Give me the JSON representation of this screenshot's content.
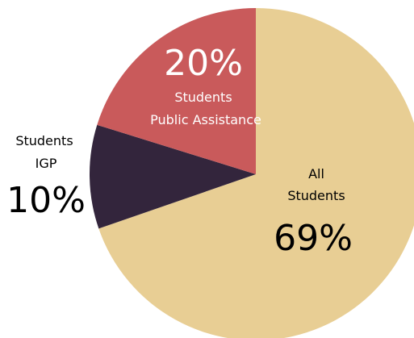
{
  "chart_data": {
    "type": "pie",
    "title": "",
    "slices": [
      {
        "label_lines": [
          "All",
          "Students"
        ],
        "value": 69,
        "value_label": "69%",
        "color": "#e8ce94",
        "text_color": "#000000"
      },
      {
        "label_lines": [
          "Students",
          "IGP"
        ],
        "value": 10,
        "value_label": "10%",
        "color": "#33253c",
        "text_color": "#000000"
      },
      {
        "label_lines": [
          "Students",
          "Public Assistance"
        ],
        "value": 20,
        "value_label": "20%",
        "color": "#c95a5b",
        "text_color": "#ffffff"
      }
    ],
    "start_angle_deg": 0,
    "direction": "clockwise"
  }
}
